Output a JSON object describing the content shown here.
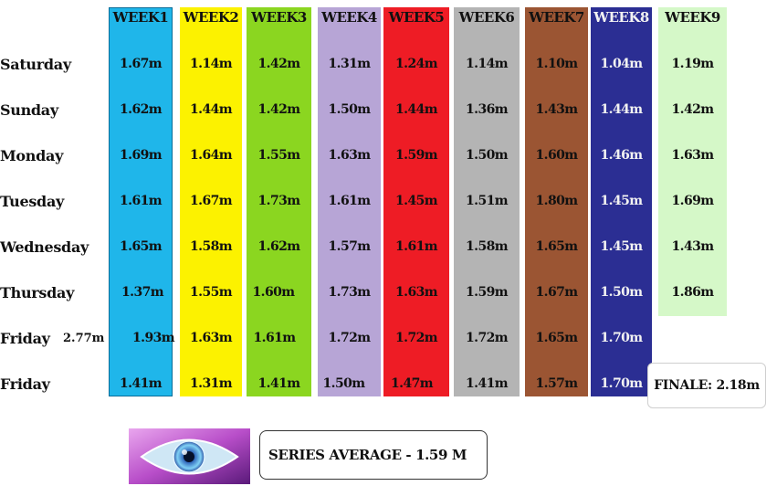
{
  "chart_data": {
    "type": "table",
    "columns": [
      {
        "label": "WEEK1",
        "color": "#1fb6ea",
        "values": [
          "1.67m",
          "1.62m",
          "1.69m",
          "1.61m",
          "1.65m",
          "1.37m",
          "1.93m",
          "1.41m"
        ]
      },
      {
        "label": "WEEK2",
        "color": "#fcf200",
        "values": [
          "1.14m",
          "1.44m",
          "1.64m",
          "1.67m",
          "1.58m",
          "1.55m",
          "1.63m",
          "1.31m"
        ]
      },
      {
        "label": "WEEK3",
        "color": "#8bd620",
        "values": [
          "1.42m",
          "1.42m",
          "1.55m",
          "1.73m",
          "1.62m",
          "1.60m",
          "1.61m",
          "1.41m"
        ]
      },
      {
        "label": "WEEK4",
        "color": "#b7a5d6",
        "values": [
          "1.31m",
          "1.50m",
          "1.63m",
          "1.61m",
          "1.57m",
          "1.73m",
          "1.72m",
          "1.50m"
        ]
      },
      {
        "label": "WEEK5",
        "color": "#ee1c25",
        "values": [
          "1.24m",
          "1.44m",
          "1.59m",
          "1.45m",
          "1.61m",
          "1.63m",
          "1.72m",
          "1.47m"
        ]
      },
      {
        "label": "WEEK6",
        "color": "#b4b4b4",
        "values": [
          "1.14m",
          "1.36m",
          "1.50m",
          "1.51m",
          "1.58m",
          "1.59m",
          "1.72m",
          "1.41m"
        ]
      },
      {
        "label": "WEEK7",
        "color": "#9b5533",
        "values": [
          "1.10m",
          "1.43m",
          "1.60m",
          "1.80m",
          "1.65m",
          "1.67m",
          "1.65m",
          "1.57m"
        ]
      },
      {
        "label": "WEEK8",
        "color": "#2b2e93",
        "values": [
          "1.04m",
          "1.44m",
          "1.46m",
          "1.45m",
          "1.45m",
          "1.50m",
          "1.70m",
          "1.70m"
        ]
      },
      {
        "label": "WEEK9",
        "color": "#d5f8c8",
        "values": [
          "1.19m",
          "1.42m",
          "1.63m",
          "1.69m",
          "1.43m",
          "1.86m"
        ]
      }
    ],
    "rows": [
      "Saturday",
      "Sunday",
      "Monday",
      "Tuesday",
      "Wednesday",
      "Thursday",
      "Friday",
      "Friday"
    ],
    "extra_value": "2.77m",
    "finale": "FINALE: 2.18m",
    "series_average": "SERIES AVERAGE - 1.59 M"
  }
}
